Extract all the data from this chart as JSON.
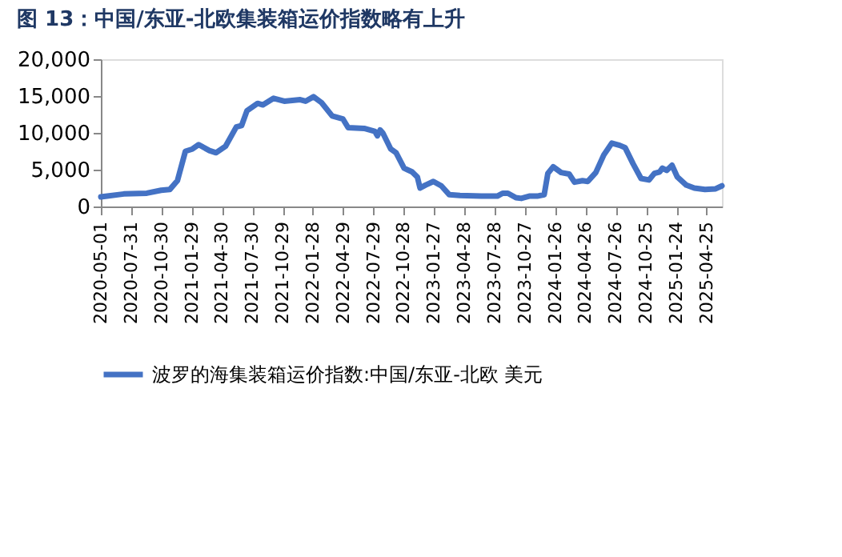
{
  "chart_data": {
    "type": "line",
    "title": "图 13：中国/东亚-北欧集装箱运价指数略有上升",
    "x": [
      "2020-05-01",
      "2020-07-09",
      "2020-09-16",
      "2020-10-29",
      "2020-11-24",
      "2020-12-17",
      "2021-01-10",
      "2021-01-31",
      "2021-02-19",
      "2021-03-23",
      "2021-04-12",
      "2021-05-11",
      "2021-06-12",
      "2021-06-28",
      "2021-07-14",
      "2021-08-15",
      "2021-08-31",
      "2021-10-02",
      "2021-11-03",
      "2021-12-21",
      "2022-01-06",
      "2022-01-30",
      "2022-02-23",
      "2022-03-27",
      "2022-04-28",
      "2022-05-14",
      "2022-07-01",
      "2022-08-02",
      "2022-08-10",
      "2022-08-18",
      "2022-08-26",
      "2022-09-19",
      "2022-10-05",
      "2022-10-29",
      "2022-11-22",
      "2022-12-08",
      "2022-12-16",
      "2023-01-01",
      "2023-01-25",
      "2023-02-18",
      "2023-03-14",
      "2023-04-15",
      "2023-06-18",
      "2023-08-05",
      "2023-08-21",
      "2023-09-06",
      "2023-09-30",
      "2023-10-16",
      "2023-11-09",
      "2023-12-03",
      "2023-12-24",
      "2024-01-04",
      "2024-01-20",
      "2024-02-13",
      "2024-03-08",
      "2024-03-24",
      "2024-04-17",
      "2024-05-03",
      "2024-05-27",
      "2024-06-20",
      "2024-07-14",
      "2024-08-07",
      "2024-08-23",
      "2024-09-16",
      "2024-10-10",
      "2024-11-03",
      "2024-11-19",
      "2024-12-05",
      "2024-12-13",
      "2024-12-26",
      "2025-01-11",
      "2025-01-27",
      "2025-02-23",
      "2025-03-19",
      "2025-04-20",
      "2025-05-22",
      "2025-06-10"
    ],
    "series": [
      {
        "name": "波罗的海集装箱运价指数:中国/东亚-北欧 美元",
        "color": "#4472c4",
        "values": [
          1300,
          1700,
          1800,
          2200,
          2300,
          3500,
          7500,
          7800,
          8400,
          7600,
          7300,
          8200,
          10800,
          11000,
          13000,
          14000,
          13800,
          14700,
          14300,
          14500,
          14300,
          14900,
          14100,
          12300,
          11900,
          10700,
          10600,
          10200,
          9600,
          10400,
          10000,
          7800,
          7300,
          5200,
          4700,
          4000,
          2500,
          2900,
          3400,
          2800,
          1600,
          1500,
          1400,
          1400,
          1800,
          1800,
          1200,
          1100,
          1400,
          1400,
          1600,
          4500,
          5400,
          4600,
          4400,
          3300,
          3500,
          3400,
          4600,
          7000,
          8600,
          8300,
          8000,
          5800,
          3800,
          3600,
          4500,
          4700,
          5200,
          4900,
          5600,
          4000,
          2900,
          2500,
          2300,
          2400,
          2800
        ]
      }
    ],
    "xlim": [
      "2020-05-01",
      "2025-06-10"
    ],
    "xticks": [
      "2020-05-01",
      "2020-07-31",
      "2020-10-30",
      "2021-01-29",
      "2021-04-30",
      "2021-07-30",
      "2021-10-29",
      "2022-01-28",
      "2022-04-29",
      "2022-07-29",
      "2022-10-28",
      "2023-01-27",
      "2023-04-28",
      "2023-07-28",
      "2023-10-27",
      "2024-01-26",
      "2024-04-26",
      "2024-07-26",
      "2024-10-25",
      "2025-01-24",
      "2025-04-25"
    ],
    "ylim": [
      0,
      20000
    ],
    "yticks": [
      {
        "value": 0,
        "label": "0"
      },
      {
        "value": 5000,
        "label": "5,000"
      },
      {
        "value": 10000,
        "label": "10,000"
      },
      {
        "value": 15000,
        "label": "15,000"
      },
      {
        "value": 20000,
        "label": "20,000"
      }
    ],
    "grid": false,
    "legend": "bottom",
    "marker": "none",
    "line_style": "solid"
  }
}
